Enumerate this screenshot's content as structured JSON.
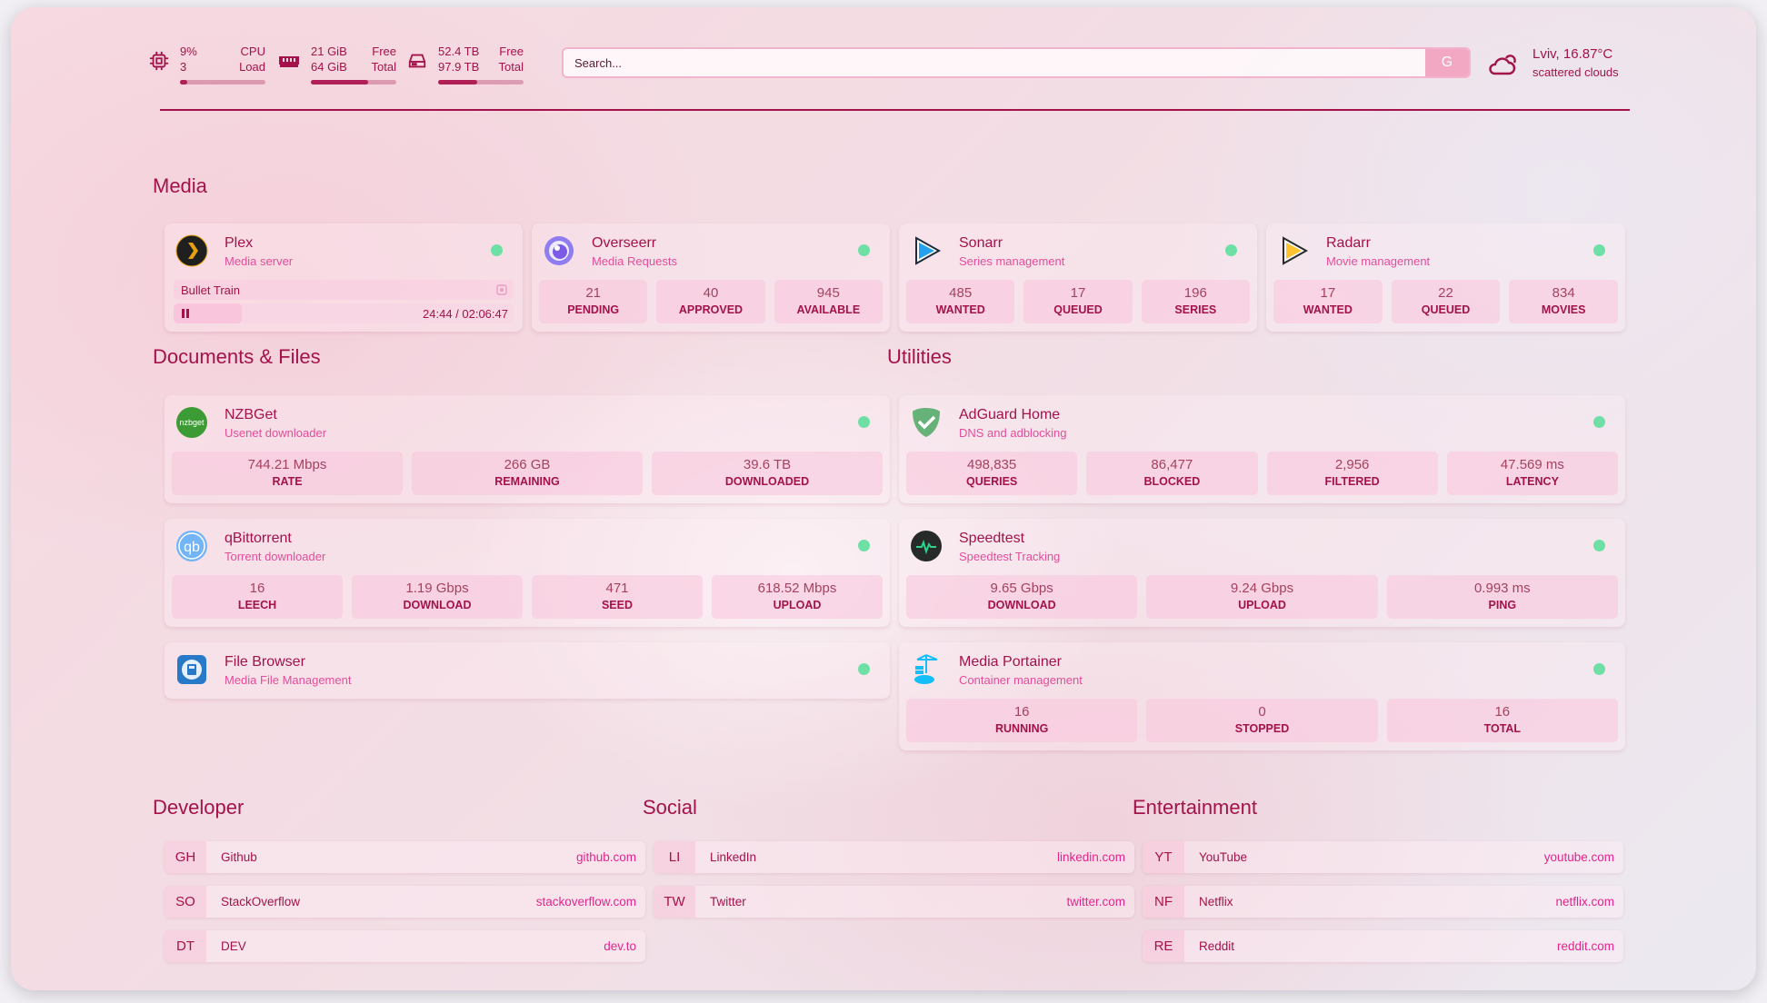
{
  "header": {
    "cpu": {
      "icon": "cpu-icon",
      "value": "9%",
      "sub": "3",
      "label": "CPU",
      "label2": "Load",
      "usage_percent": 9
    },
    "memory": {
      "icon": "memory-icon",
      "value": "21 GiB",
      "sub": "64 GiB",
      "label": "Free",
      "label2": "Total",
      "usage_percent": 67
    },
    "disk": {
      "icon": "disk-icon",
      "value": "52.4 TB",
      "sub": "97.9 TB",
      "label": "Free",
      "label2": "Total",
      "usage_percent": 46
    },
    "search": {
      "placeholder": "Search...",
      "provider_label": "G"
    },
    "weather": {
      "icon": "cloud-sun-icon",
      "location_temp": "Lviv, 16.87°C",
      "condition": "scattered clouds"
    }
  },
  "sections": {
    "media": "Media",
    "documents": "Documents & Files",
    "utilities": "Utilities",
    "developer": "Developer",
    "social": "Social",
    "entertainment": "Entertainment"
  },
  "services": {
    "plex": {
      "icon": "plex-icon",
      "name": "Plex",
      "desc": "Media server",
      "now_playing": "Bullet Train",
      "time": "24:44 / 02:06:47",
      "progress_percent": 20
    },
    "overseerr": {
      "icon": "overseerr-icon",
      "name": "Overseerr",
      "desc": "Media Requests",
      "stats": [
        {
          "v": "21",
          "k": "PENDING"
        },
        {
          "v": "40",
          "k": "APPROVED"
        },
        {
          "v": "945",
          "k": "AVAILABLE"
        }
      ]
    },
    "sonarr": {
      "icon": "sonarr-icon",
      "name": "Sonarr",
      "desc": "Series management",
      "stats": [
        {
          "v": "485",
          "k": "WANTED"
        },
        {
          "v": "17",
          "k": "QUEUED"
        },
        {
          "v": "196",
          "k": "SERIES"
        }
      ]
    },
    "radarr": {
      "icon": "radarr-icon",
      "name": "Radarr",
      "desc": "Movie management",
      "stats": [
        {
          "v": "17",
          "k": "WANTED"
        },
        {
          "v": "22",
          "k": "QUEUED"
        },
        {
          "v": "834",
          "k": "MOVIES"
        }
      ]
    },
    "nzbget": {
      "icon": "nzbget-icon",
      "name": "NZBGet",
      "desc": "Usenet downloader",
      "stats": [
        {
          "v": "744.21 Mbps",
          "k": "RATE"
        },
        {
          "v": "266 GB",
          "k": "REMAINING"
        },
        {
          "v": "39.6 TB",
          "k": "DOWNLOADED"
        }
      ]
    },
    "qbittorrent": {
      "icon": "qbittorrent-icon",
      "name": "qBittorrent",
      "desc": "Torrent downloader",
      "stats": [
        {
          "v": "16",
          "k": "LEECH"
        },
        {
          "v": "1.19 Gbps",
          "k": "DOWNLOAD"
        },
        {
          "v": "471",
          "k": "SEED"
        },
        {
          "v": "618.52 Mbps",
          "k": "UPLOAD"
        }
      ]
    },
    "filebrowser": {
      "icon": "filebrowser-icon",
      "name": "File Browser",
      "desc": "Media File Management"
    },
    "adguard": {
      "icon": "adguard-icon",
      "name": "AdGuard Home",
      "desc": "DNS and adblocking",
      "stats": [
        {
          "v": "498,835",
          "k": "QUERIES"
        },
        {
          "v": "86,477",
          "k": "BLOCKED"
        },
        {
          "v": "2,956",
          "k": "FILTERED"
        },
        {
          "v": "47.569 ms",
          "k": "LATENCY"
        }
      ]
    },
    "speedtest": {
      "icon": "speedtest-icon",
      "name": "Speedtest",
      "desc": "Speedtest Tracking",
      "stats": [
        {
          "v": "9.65 Gbps",
          "k": "DOWNLOAD"
        },
        {
          "v": "9.24 Gbps",
          "k": "UPLOAD"
        },
        {
          "v": "0.993 ms",
          "k": "PING"
        }
      ]
    },
    "portainer": {
      "icon": "portainer-icon",
      "name": "Media Portainer",
      "desc": "Container management",
      "stats": [
        {
          "v": "16",
          "k": "RUNNING"
        },
        {
          "v": "0",
          "k": "STOPPED"
        },
        {
          "v": "16",
          "k": "TOTAL"
        }
      ]
    }
  },
  "status_color": "#6fe0a5",
  "bookmarks": {
    "developer": [
      {
        "abbr": "GH",
        "name": "Github",
        "url": "github.com"
      },
      {
        "abbr": "SO",
        "name": "StackOverflow",
        "url": "stackoverflow.com"
      },
      {
        "abbr": "DT",
        "name": "DEV",
        "url": "dev.to"
      }
    ],
    "social": [
      {
        "abbr": "LI",
        "name": "LinkedIn",
        "url": "linkedin.com"
      },
      {
        "abbr": "TW",
        "name": "Twitter",
        "url": "twitter.com"
      }
    ],
    "entertainment": [
      {
        "abbr": "YT",
        "name": "YouTube",
        "url": "youtube.com"
      },
      {
        "abbr": "NF",
        "name": "Netflix",
        "url": "netflix.com"
      },
      {
        "abbr": "RE",
        "name": "Reddit",
        "url": "reddit.com"
      }
    ]
  }
}
